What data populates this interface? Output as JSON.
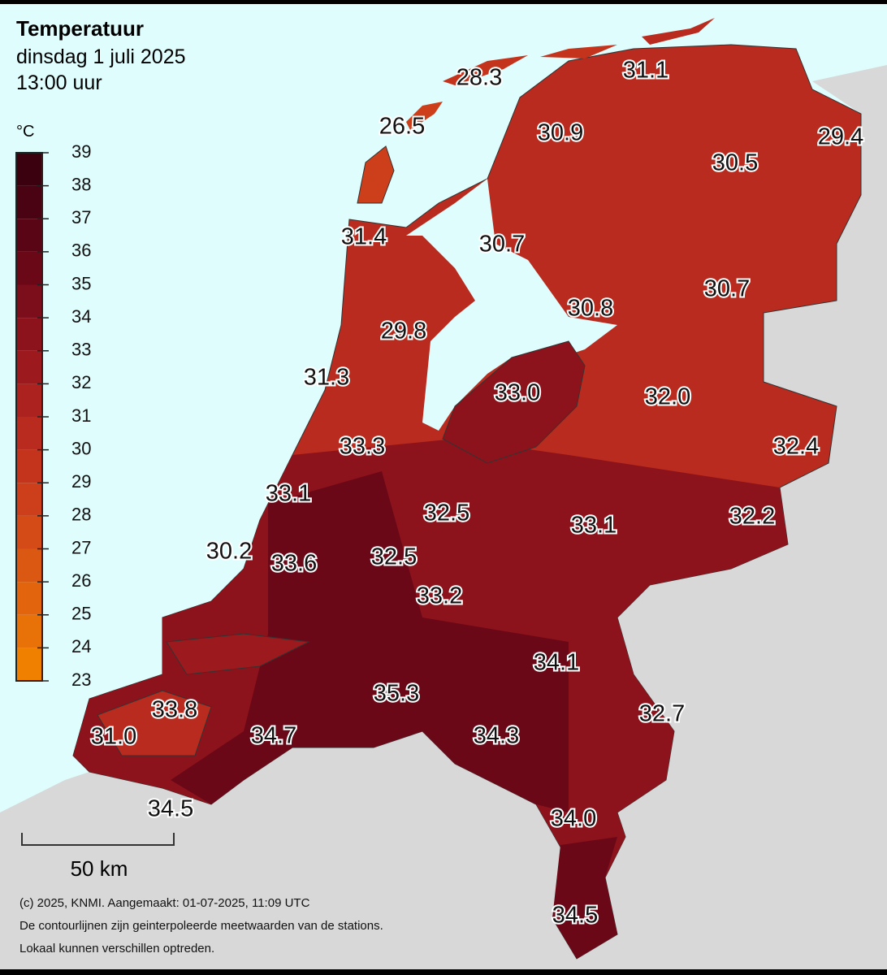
{
  "header": {
    "title": "Temperatuur",
    "date": "dinsdag 1 juli 2025",
    "time": "13:00 uur"
  },
  "legend": {
    "unit": "°C",
    "ticks": [
      23,
      24,
      25,
      26,
      27,
      28,
      29,
      30,
      31,
      32,
      33,
      34,
      35,
      36,
      37,
      38,
      39
    ],
    "colors": [
      "#ef8000",
      "#e97208",
      "#e2650e",
      "#db5813",
      "#d44b17",
      "#cc3f1a",
      "#c4341c",
      "#b92b1e",
      "#ab221e",
      "#9c1a1d",
      "#8c131c",
      "#7c0d1a",
      "#6b0818",
      "#5a0515",
      "#4a0312",
      "#3b010f"
    ]
  },
  "stations": [
    "28.3",
    "31.1",
    "26.5",
    "30.9",
    "29.4",
    "30.5",
    "31.4",
    "30.7",
    "30.8",
    "30.7",
    "29.8",
    "31.3",
    "33.0",
    "32.0",
    "33.3",
    "32.4",
    "33.1",
    "32.5",
    "32.2",
    "33.1",
    "30.2",
    "33.6",
    "32.5",
    "33.2",
    "34.1",
    "35.3",
    "33.8",
    "32.7",
    "31.0",
    "34.7",
    "34.3",
    "34.5",
    "34.0",
    "34.5"
  ],
  "scale": "50 km",
  "footer": [
    "(c) 2025, KNMI. Aangemaakt: 01-07-2025, 11:09 UTC",
    "De contourlijnen zijn geinterpoleerde meetwaarden van de stations.",
    "Lokaal kunnen verschillen optreden."
  ]
}
